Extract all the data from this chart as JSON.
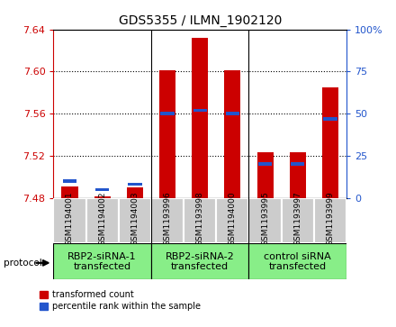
{
  "title": "GDS5355 / ILMN_1902120",
  "samples": [
    "GSM1194001",
    "GSM1194002",
    "GSM1194003",
    "GSM1193996",
    "GSM1193998",
    "GSM1194000",
    "GSM1193995",
    "GSM1193997",
    "GSM1193999"
  ],
  "red_values": [
    7.491,
    7.481,
    7.49,
    7.601,
    7.632,
    7.601,
    7.523,
    7.523,
    7.585
  ],
  "blue_percentiles": [
    10,
    5,
    8,
    50,
    52,
    50,
    20,
    20,
    47
  ],
  "ymin": 7.48,
  "ymax": 7.64,
  "y_ticks": [
    7.48,
    7.52,
    7.56,
    7.6,
    7.64
  ],
  "y2min": 0,
  "y2max": 100,
  "y2_ticks": [
    0,
    25,
    50,
    75,
    100
  ],
  "groups": [
    {
      "label": "RBP2-siRNA-1\ntransfected",
      "start": 0,
      "end": 2
    },
    {
      "label": "RBP2-siRNA-2\ntransfected",
      "start": 3,
      "end": 5
    },
    {
      "label": "control siRNA\ntransfected",
      "start": 6,
      "end": 8
    }
  ],
  "group_color": "#88ee88",
  "sample_bg": "#cccccc",
  "red_color": "#cc0000",
  "blue_color": "#2255cc",
  "bar_width": 0.5,
  "title_fontsize": 10,
  "tick_fontsize": 8,
  "sample_fontsize": 6.5,
  "group_fontsize": 8
}
